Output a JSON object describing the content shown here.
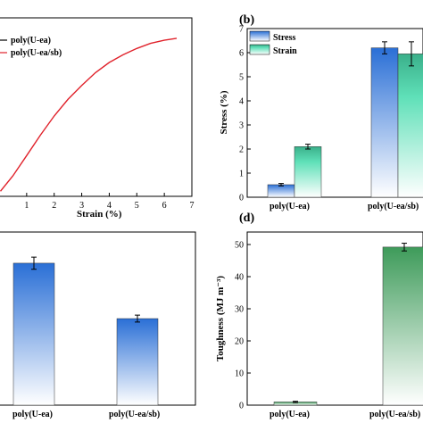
{
  "colors": {
    "red_curve": "#e0222b",
    "blue_bar": "#2a6fd6",
    "teal_bar": "#3ab08a",
    "mint_bar": "#5fe0b8",
    "green_bar": "#3e9b5a",
    "axis": "#000000"
  },
  "chart_data": [
    {
      "id": "a",
      "type": "line",
      "panel_letter": "",
      "xlabel": "Strain (%)",
      "ylabel": "",
      "xlim": [
        0,
        7
      ],
      "x_ticks": [
        "1",
        "2",
        "3",
        "4",
        "5",
        "6",
        "7"
      ],
      "legend": [
        "poly(U-ea)",
        "poly(U-ea/sb)"
      ],
      "series": [
        {
          "name": "poly(U-ea/sb)",
          "x": [
            0.05,
            0.5,
            1.0,
            1.5,
            2.0,
            2.5,
            3.0,
            3.5,
            4.0,
            4.5,
            5.0,
            5.5,
            6.0,
            6.45
          ],
          "y": [
            0.2,
            0.8,
            1.6,
            2.4,
            3.15,
            3.8,
            4.35,
            4.85,
            5.25,
            5.55,
            5.8,
            6.0,
            6.12,
            6.2
          ]
        }
      ],
      "ylim": [
        0,
        7
      ]
    },
    {
      "id": "b",
      "type": "bar",
      "panel_letter": "(b)",
      "ylabel": "Stress (%)",
      "xlabel": "",
      "ylim": [
        0,
        7
      ],
      "y_ticks": [
        "0",
        "1",
        "2",
        "3",
        "4",
        "5",
        "6",
        "7"
      ],
      "categories": [
        "poly(U-ea)",
        "poly(U-ea/sb)"
      ],
      "series": [
        {
          "name": "Stress",
          "values": [
            0.52,
            6.2
          ],
          "errors": [
            0.05,
            0.25
          ]
        },
        {
          "name": "Strain",
          "values": [
            2.1,
            5.95
          ],
          "errors": [
            0.1,
            0.5
          ]
        }
      ]
    },
    {
      "id": "c",
      "type": "bar",
      "panel_letter": "",
      "ylabel": "",
      "xlabel": "",
      "ylim": [
        0,
        1
      ],
      "categories": [
        "poly(U-ea)",
        "poly(U-ea/sb)"
      ],
      "series": [
        {
          "name": "",
          "values": [
            0.82,
            0.5
          ],
          "errors": [
            0.035,
            0.02
          ]
        }
      ]
    },
    {
      "id": "d",
      "type": "bar",
      "panel_letter": "(d)",
      "ylabel": "Toughness (MJ m⁻³)",
      "xlabel": "",
      "ylim": [
        0,
        50
      ],
      "y_ticks": [
        "0",
        "10",
        "20",
        "30",
        "40",
        "50"
      ],
      "categories": [
        "poly(U-ea)",
        "poly(U-ea/sb)"
      ],
      "series": [
        {
          "name": "",
          "values": [
            1.0,
            49.2
          ],
          "errors": [
            0.2,
            1.2
          ]
        }
      ]
    }
  ]
}
